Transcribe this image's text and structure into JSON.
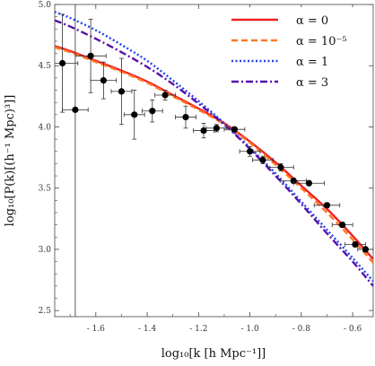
{
  "chart_data": {
    "type": "line",
    "xlabel": "log₁₀[k [h Mpc⁻¹]]",
    "ylabel": "log₁₀[P(k)[(h⁻¹ Mpc)³]]",
    "xlim": [
      -1.76,
      -0.52
    ],
    "ylim": [
      2.45,
      5.0
    ],
    "x_ticks": [
      -1.6,
      -1.4,
      -1.2,
      -1.0,
      -0.8,
      -0.6
    ],
    "y_ticks": [
      2.5,
      3.0,
      3.5,
      4.0,
      4.5,
      5.0
    ],
    "x_tick_labels": [
      "- 1.6",
      "- 1.4",
      "- 1.2",
      "- 1.0",
      "- 0.8",
      "- 0.6"
    ],
    "y_tick_labels": [
      "2.5",
      "3.0",
      "3.5",
      "4.0",
      "4.5",
      "5.0"
    ],
    "grid": false,
    "legend_position": "top-right",
    "series": [
      {
        "name": "α = 0",
        "color": "#ee2222",
        "dash": "solid",
        "x": [
          -1.76,
          -1.7,
          -1.6,
          -1.5,
          -1.4,
          -1.3,
          -1.2,
          -1.1,
          -1.0,
          -0.9,
          -0.8,
          -0.7,
          -0.6,
          -0.52
        ],
        "y": [
          4.66,
          4.62,
          4.54,
          4.46,
          4.37,
          4.26,
          4.15,
          4.03,
          3.88,
          3.71,
          3.52,
          3.33,
          3.11,
          2.92
        ]
      },
      {
        "name": "α = 10⁻⁵",
        "color": "#ff7722",
        "dash": "dashed",
        "x": [
          -1.76,
          -1.7,
          -1.6,
          -1.5,
          -1.4,
          -1.3,
          -1.2,
          -1.1,
          -1.0,
          -0.9,
          -0.8,
          -0.7,
          -0.6,
          -0.52
        ],
        "y": [
          4.65,
          4.61,
          4.53,
          4.45,
          4.36,
          4.25,
          4.14,
          4.02,
          3.87,
          3.69,
          3.5,
          3.3,
          3.08,
          2.89
        ]
      },
      {
        "name": "α = 1",
        "color": "#2244ee",
        "dash": "dotted",
        "x": [
          -1.76,
          -1.7,
          -1.6,
          -1.5,
          -1.4,
          -1.3,
          -1.2,
          -1.1,
          -1.0,
          -0.9,
          -0.8,
          -0.7,
          -0.6,
          -0.52
        ],
        "y": [
          4.94,
          4.89,
          4.79,
          4.67,
          4.54,
          4.38,
          4.21,
          4.03,
          3.83,
          3.62,
          3.39,
          3.16,
          2.93,
          2.74
        ]
      },
      {
        "name": "α = 3",
        "color": "#5511aa",
        "dash": "dashdot",
        "x": [
          -1.76,
          -1.7,
          -1.6,
          -1.5,
          -1.4,
          -1.3,
          -1.2,
          -1.1,
          -1.0,
          -0.9,
          -0.8,
          -0.7,
          -0.6,
          -0.52
        ],
        "y": [
          4.87,
          4.82,
          4.72,
          4.61,
          4.49,
          4.35,
          4.19,
          4.02,
          3.82,
          3.6,
          3.37,
          3.13,
          2.9,
          2.7
        ]
      }
    ],
    "data_points": {
      "x": [
        -1.73,
        -1.68,
        -1.62,
        -1.57,
        -1.5,
        -1.45,
        -1.38,
        -1.33,
        -1.25,
        -1.18,
        -1.13,
        -1.06,
        -1.0,
        -0.95,
        -0.88,
        -0.83,
        -0.77,
        -0.7,
        -0.64,
        -0.59,
        -0.55
      ],
      "y": [
        4.52,
        4.14,
        4.58,
        4.38,
        4.29,
        4.1,
        4.13,
        4.26,
        4.08,
        3.97,
        3.99,
        3.98,
        3.8,
        3.73,
        3.67,
        3.56,
        3.54,
        3.36,
        3.2,
        3.04,
        3.0
      ],
      "xerr": [
        0.06,
        0.05,
        0.06,
        0.05,
        0.04,
        0.04,
        0.04,
        0.04,
        0.04,
        0.04,
        0.04,
        0.04,
        0.04,
        0.04,
        0.05,
        0.05,
        0.06,
        0.05,
        0.04,
        0.04,
        0.03
      ],
      "yerr": [
        0.4,
        1.75,
        0.3,
        0.15,
        0.27,
        0.2,
        0.09,
        0.04,
        0.09,
        0.06,
        0.03,
        0.02,
        0.04,
        0.03,
        0.03,
        0.02,
        0.02,
        0.02,
        0.02,
        0.02,
        0.02
      ]
    }
  }
}
